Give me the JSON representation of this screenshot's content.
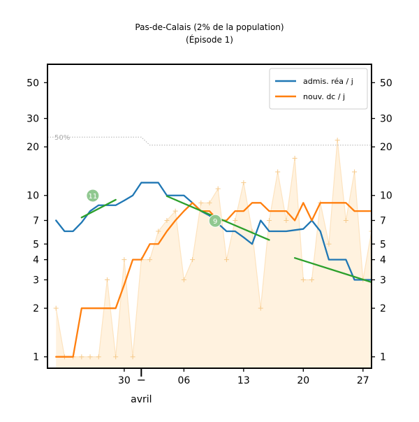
{
  "chart_data": {
    "type": "line",
    "title": "Pas-de-Calais (2% de la population)",
    "subtitle": "(Épisode 1)",
    "y_scale": "log",
    "ylim": [
      0.85,
      65
    ],
    "y_ticks": [
      1,
      2,
      3,
      4,
      5,
      7,
      10,
      20,
      30,
      50
    ],
    "x_axis_unit": "day of 2020",
    "xlim": [
      "2020-03-21",
      "2020-04-28"
    ],
    "x_ticks": [
      {
        "date": "2020-03-30",
        "label": "30"
      },
      {
        "date": "2020-04-06",
        "label": "06"
      },
      {
        "date": "2020-04-13",
        "label": "13"
      },
      {
        "date": "2020-04-20",
        "label": "20"
      },
      {
        "date": "2020-04-27",
        "label": "27"
      }
    ],
    "month_marker": {
      "date": "2020-04-01",
      "label": "avril"
    },
    "grid": false,
    "legend_position": "top-right",
    "reference_line": {
      "label": "50%",
      "points": [
        {
          "x": "2020-03-21",
          "y": 23
        },
        {
          "x": "2020-04-01",
          "y": 23
        },
        {
          "x": "2020-04-02",
          "y": 20.5
        },
        {
          "x": "2020-04-28",
          "y": 20.5
        }
      ]
    },
    "daily_deaths_raw": [
      {
        "x": "2020-03-22",
        "y": 2
      },
      {
        "x": "2020-03-23",
        "y": 1
      },
      {
        "x": "2020-03-24",
        "y": 1
      },
      {
        "x": "2020-03-25",
        "y": 1
      },
      {
        "x": "2020-03-26",
        "y": 1
      },
      {
        "x": "2020-03-27",
        "y": 1
      },
      {
        "x": "2020-03-28",
        "y": 3
      },
      {
        "x": "2020-03-29",
        "y": 1
      },
      {
        "x": "2020-03-30",
        "y": 4
      },
      {
        "x": "2020-03-31",
        "y": 1
      },
      {
        "x": "2020-04-01",
        "y": 4
      },
      {
        "x": "2020-04-02",
        "y": 4
      },
      {
        "x": "2020-04-03",
        "y": 6
      },
      {
        "x": "2020-04-04",
        "y": 7
      },
      {
        "x": "2020-04-05",
        "y": 8
      },
      {
        "x": "2020-04-06",
        "y": 3
      },
      {
        "x": "2020-04-07",
        "y": 4
      },
      {
        "x": "2020-04-08",
        "y": 9
      },
      {
        "x": "2020-04-09",
        "y": 9
      },
      {
        "x": "2020-04-10",
        "y": 11
      },
      {
        "x": "2020-04-11",
        "y": 4
      },
      {
        "x": "2020-04-12",
        "y": 7
      },
      {
        "x": "2020-04-13",
        "y": 12
      },
      {
        "x": "2020-04-14",
        "y": 6
      },
      {
        "x": "2020-04-15",
        "y": 2
      },
      {
        "x": "2020-04-16",
        "y": 7
      },
      {
        "x": "2020-04-17",
        "y": 14
      },
      {
        "x": "2020-04-18",
        "y": 7
      },
      {
        "x": "2020-04-19",
        "y": 17
      },
      {
        "x": "2020-04-20",
        "y": 3
      },
      {
        "x": "2020-04-21",
        "y": 3
      },
      {
        "x": "2020-04-22",
        "y": 9
      },
      {
        "x": "2020-04-23",
        "y": 5
      },
      {
        "x": "2020-04-24",
        "y": 22
      },
      {
        "x": "2020-04-25",
        "y": 7
      },
      {
        "x": "2020-04-26",
        "y": 14
      },
      {
        "x": "2020-04-27",
        "y": 3
      },
      {
        "x": "2020-04-28",
        "y": 6
      }
    ],
    "series": [
      {
        "name": "admis. réa / j",
        "color": "#1f77b4",
        "points": [
          {
            "x": "2020-03-22",
            "y": 7
          },
          {
            "x": "2020-03-23",
            "y": 6
          },
          {
            "x": "2020-03-24",
            "y": 6
          },
          {
            "x": "2020-03-25",
            "y": 6.8
          },
          {
            "x": "2020-03-26",
            "y": 8
          },
          {
            "x": "2020-03-27",
            "y": 8.7
          },
          {
            "x": "2020-03-28",
            "y": 8.7
          },
          {
            "x": "2020-03-29",
            "y": 8.7
          },
          {
            "x": "2020-03-30",
            "y": 9.3
          },
          {
            "x": "2020-03-31",
            "y": 10
          },
          {
            "x": "2020-04-01",
            "y": 12
          },
          {
            "x": "2020-04-02",
            "y": 12
          },
          {
            "x": "2020-04-03",
            "y": 12
          },
          {
            "x": "2020-04-04",
            "y": 10
          },
          {
            "x": "2020-04-05",
            "y": 10
          },
          {
            "x": "2020-04-06",
            "y": 10
          },
          {
            "x": "2020-04-07",
            "y": 9
          },
          {
            "x": "2020-04-08",
            "y": 8
          },
          {
            "x": "2020-04-09",
            "y": 7.5
          },
          {
            "x": "2020-04-10",
            "y": 6.7
          },
          {
            "x": "2020-04-11",
            "y": 6
          },
          {
            "x": "2020-04-12",
            "y": 6
          },
          {
            "x": "2020-04-13",
            "y": 5.5
          },
          {
            "x": "2020-04-14",
            "y": 5
          },
          {
            "x": "2020-04-15",
            "y": 7
          },
          {
            "x": "2020-04-16",
            "y": 6
          },
          {
            "x": "2020-04-17",
            "y": 6
          },
          {
            "x": "2020-04-18",
            "y": 6
          },
          {
            "x": "2020-04-19",
            "y": 6.1
          },
          {
            "x": "2020-04-20",
            "y": 6.2
          },
          {
            "x": "2020-04-21",
            "y": 7
          },
          {
            "x": "2020-04-22",
            "y": 6
          },
          {
            "x": "2020-04-23",
            "y": 4
          },
          {
            "x": "2020-04-24",
            "y": 4
          },
          {
            "x": "2020-04-25",
            "y": 4
          },
          {
            "x": "2020-04-26",
            "y": 3
          },
          {
            "x": "2020-04-27",
            "y": 3
          },
          {
            "x": "2020-04-28",
            "y": 3
          }
        ]
      },
      {
        "name": "nouv. dc / j",
        "color": "#ff7f0e",
        "points": [
          {
            "x": "2020-03-22",
            "y": 1
          },
          {
            "x": "2020-03-23",
            "y": 1
          },
          {
            "x": "2020-03-24",
            "y": 1
          },
          {
            "x": "2020-03-25",
            "y": 2
          },
          {
            "x": "2020-03-26",
            "y": 2
          },
          {
            "x": "2020-03-27",
            "y": 2
          },
          {
            "x": "2020-03-28",
            "y": 2
          },
          {
            "x": "2020-03-29",
            "y": 2
          },
          {
            "x": "2020-03-30",
            "y": 2.8
          },
          {
            "x": "2020-03-31",
            "y": 4
          },
          {
            "x": "2020-04-01",
            "y": 4
          },
          {
            "x": "2020-04-02",
            "y": 5
          },
          {
            "x": "2020-04-03",
            "y": 5
          },
          {
            "x": "2020-04-04",
            "y": 6
          },
          {
            "x": "2020-04-05",
            "y": 7
          },
          {
            "x": "2020-04-06",
            "y": 8
          },
          {
            "x": "2020-04-07",
            "y": 9
          },
          {
            "x": "2020-04-08",
            "y": 8
          },
          {
            "x": "2020-04-09",
            "y": 8
          },
          {
            "x": "2020-04-10",
            "y": 7
          },
          {
            "x": "2020-04-11",
            "y": 7
          },
          {
            "x": "2020-04-12",
            "y": 8
          },
          {
            "x": "2020-04-13",
            "y": 8
          },
          {
            "x": "2020-04-14",
            "y": 9
          },
          {
            "x": "2020-04-15",
            "y": 9
          },
          {
            "x": "2020-04-16",
            "y": 8
          },
          {
            "x": "2020-04-17",
            "y": 8
          },
          {
            "x": "2020-04-18",
            "y": 8
          },
          {
            "x": "2020-04-19",
            "y": 7
          },
          {
            "x": "2020-04-20",
            "y": 9
          },
          {
            "x": "2020-04-21",
            "y": 7
          },
          {
            "x": "2020-04-22",
            "y": 9
          },
          {
            "x": "2020-04-23",
            "y": 9
          },
          {
            "x": "2020-04-24",
            "y": 9
          },
          {
            "x": "2020-04-25",
            "y": 9
          },
          {
            "x": "2020-04-26",
            "y": 8
          },
          {
            "x": "2020-04-27",
            "y": 8
          },
          {
            "x": "2020-04-28",
            "y": 8
          }
        ]
      }
    ],
    "trend_lines": [
      {
        "color": "#2ca02c",
        "label": "11",
        "points": [
          {
            "x": "2020-03-25",
            "y": 7.3
          },
          {
            "x": "2020-03-29",
            "y": 9.4
          }
        ]
      },
      {
        "color": "#2ca02c",
        "label": "9",
        "points": [
          {
            "x": "2020-04-04",
            "y": 9.9
          },
          {
            "x": "2020-04-16",
            "y": 5.3
          }
        ]
      },
      {
        "color": "#2ca02c",
        "label": "",
        "points": [
          {
            "x": "2020-04-19",
            "y": 4.1
          },
          {
            "x": "2020-04-28",
            "y": 2.9
          }
        ]
      }
    ]
  }
}
